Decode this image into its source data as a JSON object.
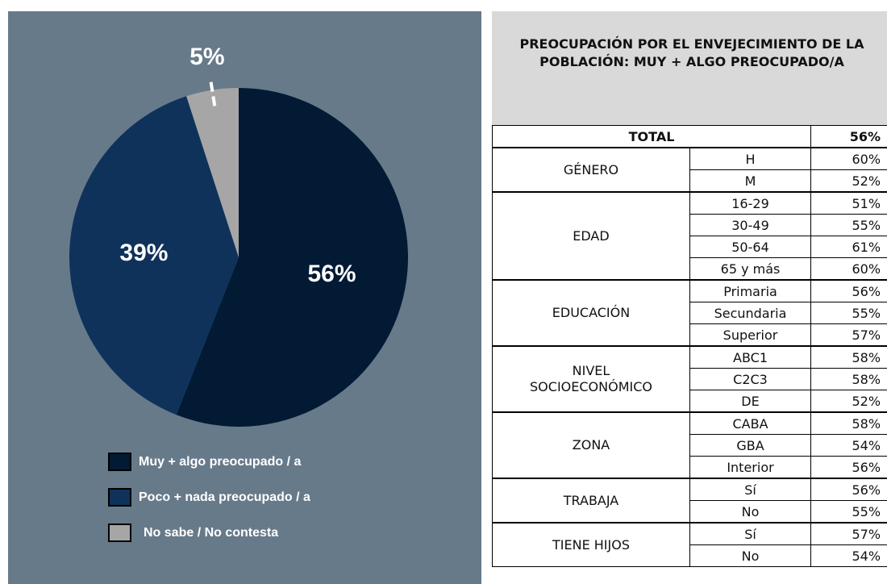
{
  "chart_data": {
    "type": "pie",
    "categories": [
      "Muy + algo preocupado / a",
      "Poco + nada preocupado / a",
      "No sabe / No contesta"
    ],
    "values": [
      56,
      39,
      5
    ],
    "value_labels": [
      "56%",
      "39%",
      "5%"
    ],
    "colors": [
      "#021a33",
      "#0f325a",
      "#a6a6a6"
    ]
  },
  "table": {
    "title": "PREOCUPACIÓN POR EL ENVEJECIMIENTO DE LA POBLACIÓN: MUY + ALGO PREOCUPADO/A",
    "total": {
      "label": "TOTAL",
      "value": "56%"
    },
    "groups": [
      {
        "name": "GÉNERO",
        "rows": [
          {
            "label": "H",
            "value": "60%"
          },
          {
            "label": "M",
            "value": "52%"
          }
        ]
      },
      {
        "name": "EDAD",
        "rows": [
          {
            "label": "16-29",
            "value": "51%"
          },
          {
            "label": "30-49",
            "value": "55%"
          },
          {
            "label": "50-64",
            "value": "61%"
          },
          {
            "label": "65 y más",
            "value": "60%"
          }
        ]
      },
      {
        "name": "EDUCACIÓN",
        "rows": [
          {
            "label": "Primaria",
            "value": "56%"
          },
          {
            "label": "Secundaria",
            "value": "55%"
          },
          {
            "label": "Superior",
            "value": "57%"
          }
        ]
      },
      {
        "name": "NIVEL\nSOCIOECONÓMICO",
        "rows": [
          {
            "label": "ABC1",
            "value": "58%"
          },
          {
            "label": "C2C3",
            "value": "58%"
          },
          {
            "label": "DE",
            "value": "52%"
          }
        ]
      },
      {
        "name": "ZONA",
        "rows": [
          {
            "label": "CABA",
            "value": "58%"
          },
          {
            "label": "GBA",
            "value": "54%"
          },
          {
            "label": "Interior",
            "value": "56%"
          }
        ]
      },
      {
        "name": "TRABAJA",
        "rows": [
          {
            "label": "Sí",
            "value": "56%"
          },
          {
            "label": "No",
            "value": "55%"
          }
        ]
      },
      {
        "name": "TIENE HIJOS",
        "rows": [
          {
            "label": "Sí",
            "value": "57%"
          },
          {
            "label": "No",
            "value": "54%"
          }
        ]
      }
    ]
  }
}
